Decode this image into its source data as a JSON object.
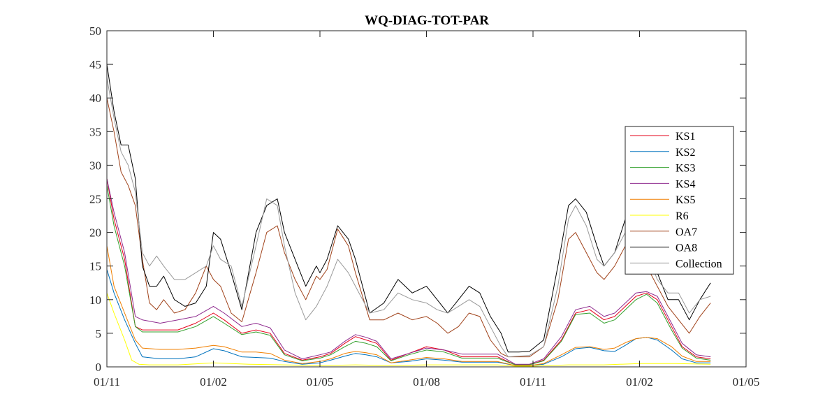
{
  "chart_data": {
    "type": "line",
    "title": "WQ-DIAG-TOT-PAR",
    "xlabel": "",
    "ylabel": "",
    "xlim": [
      0,
      18
    ],
    "ylim": [
      0,
      50
    ],
    "x_ticks": [
      {
        "value": 0,
        "label": "01/11"
      },
      {
        "value": 3,
        "label": "01/02"
      },
      {
        "value": 6,
        "label": "01/05"
      },
      {
        "value": 9,
        "label": "01/08"
      },
      {
        "value": 12,
        "label": "01/11"
      },
      {
        "value": 15,
        "label": "01/02"
      },
      {
        "value": 18,
        "label": "01/05"
      }
    ],
    "y_ticks": [
      0,
      5,
      10,
      15,
      20,
      25,
      30,
      35,
      40,
      45,
      50
    ],
    "grid": false,
    "legend_position": "right",
    "series": [
      {
        "name": "KS1",
        "color": "#e6001a",
        "x": [
          0,
          0.2,
          0.5,
          0.8,
          1.0,
          1.5,
          2.0,
          2.5,
          3.0,
          3.3,
          3.8,
          4.2,
          4.6,
          5.0,
          5.5,
          6.0,
          6.3,
          6.7,
          7.0,
          7.3,
          7.6,
          8.0,
          8.5,
          9.0,
          9.5,
          10.0,
          10.5,
          11.0,
          11.5,
          11.9,
          12.3,
          12.8,
          13.2,
          13.6,
          14.0,
          14.3,
          14.6,
          14.9,
          15.2,
          15.5,
          15.9,
          16.2,
          16.6,
          17.0
        ],
        "y": [
          28,
          22,
          16,
          6,
          5.5,
          5.5,
          5.5,
          6.5,
          8,
          7,
          5,
          5.5,
          5.0,
          2,
          1,
          1.5,
          2,
          3.5,
          4.5,
          4,
          3.5,
          1,
          2,
          3,
          2.5,
          1.5,
          1.5,
          1.5,
          0.3,
          0.3,
          1,
          4,
          8,
          8.5,
          7,
          7.5,
          9,
          10.5,
          11,
          10,
          6,
          3,
          1.5,
          1.2
        ]
      },
      {
        "name": "KS2",
        "color": "#0072bd",
        "x": [
          0,
          0.2,
          0.5,
          0.8,
          1.0,
          1.5,
          2.0,
          2.5,
          3.0,
          3.3,
          3.8,
          4.2,
          4.6,
          5.0,
          5.5,
          6.0,
          6.3,
          6.7,
          7.0,
          7.3,
          7.6,
          8.0,
          8.5,
          9.0,
          9.5,
          10.0,
          10.5,
          11.0,
          11.5,
          11.9,
          12.3,
          12.8,
          13.2,
          13.6,
          14.0,
          14.3,
          14.6,
          14.9,
          15.2,
          15.5,
          15.9,
          16.2,
          16.6,
          17.0
        ],
        "y": [
          14.5,
          11,
          7,
          3.5,
          1.5,
          1.2,
          1.2,
          1.5,
          2.7,
          2.4,
          1.5,
          1.4,
          1.3,
          0.8,
          0.4,
          0.6,
          1,
          1.6,
          2,
          1.8,
          1.5,
          0.6,
          0.8,
          1.2,
          1.0,
          0.7,
          0.7,
          0.7,
          0.2,
          0.2,
          0.4,
          1.5,
          2.7,
          2.9,
          2.4,
          2.3,
          3.2,
          4.2,
          4.4,
          4.0,
          2.5,
          1.2,
          0.6,
          0.6
        ]
      },
      {
        "name": "KS3",
        "color": "#33a02c",
        "x": [
          0,
          0.2,
          0.5,
          0.8,
          1.0,
          1.5,
          2.0,
          2.5,
          3.0,
          3.3,
          3.8,
          4.2,
          4.6,
          5.0,
          5.5,
          6.0,
          6.3,
          6.7,
          7.0,
          7.3,
          7.6,
          8.0,
          8.5,
          9.0,
          9.5,
          10.0,
          10.5,
          11.0,
          11.5,
          11.9,
          12.3,
          12.8,
          13.2,
          13.6,
          14.0,
          14.3,
          14.6,
          14.9,
          15.2,
          15.5,
          15.9,
          16.2,
          16.6,
          17.0
        ],
        "y": [
          27,
          21,
          15,
          6,
          5.2,
          5.2,
          5.2,
          6,
          7.5,
          6.5,
          4.8,
          5.2,
          4.7,
          1.8,
          0.9,
          1.3,
          1.8,
          3,
          3.8,
          3.5,
          3,
          0.9,
          1.8,
          2.5,
          2.2,
          1.3,
          1.3,
          1.3,
          0.3,
          0.3,
          0.9,
          3.8,
          7.8,
          8,
          6.5,
          7,
          8.5,
          10,
          10.8,
          9.5,
          5.5,
          2.8,
          1.3,
          1.0
        ]
      },
      {
        "name": "KS4",
        "color": "#8e2a8e",
        "x": [
          0,
          0.2,
          0.5,
          0.8,
          1.0,
          1.5,
          2.0,
          2.5,
          3.0,
          3.3,
          3.8,
          4.2,
          4.6,
          5.0,
          5.5,
          6.0,
          6.3,
          6.7,
          7.0,
          7.3,
          7.6,
          8.0,
          8.5,
          9.0,
          9.5,
          10.0,
          10.5,
          11.0,
          11.5,
          11.9,
          12.3,
          12.8,
          13.2,
          13.6,
          14.0,
          14.3,
          14.6,
          14.9,
          15.2,
          15.5,
          15.9,
          16.2,
          16.6,
          17.0
        ],
        "y": [
          28,
          23,
          17,
          7.5,
          7,
          6.5,
          7,
          7.5,
          9,
          8,
          6,
          6.5,
          5.8,
          2.5,
          1.2,
          1.8,
          2.2,
          3.8,
          4.8,
          4.4,
          3.8,
          1.2,
          2,
          2.8,
          2.5,
          1.9,
          1.9,
          1.9,
          0.4,
          0.4,
          1.2,
          4.5,
          8.5,
          9,
          7.5,
          8,
          9.5,
          11,
          11.2,
          10.5,
          6.5,
          3.5,
          1.8,
          1.5
        ]
      },
      {
        "name": "KS5",
        "color": "#f07f00",
        "x": [
          0,
          0.2,
          0.5,
          0.8,
          1.0,
          1.5,
          2.0,
          2.5,
          3.0,
          3.3,
          3.8,
          4.2,
          4.6,
          5.0,
          5.5,
          6.0,
          6.3,
          6.7,
          7.0,
          7.3,
          7.6,
          8.0,
          8.5,
          9.0,
          9.5,
          10.0,
          10.5,
          11.0,
          11.5,
          11.9,
          12.3,
          12.8,
          13.2,
          13.6,
          14.0,
          14.3,
          14.6,
          14.9,
          15.2,
          15.5,
          15.9,
          16.2,
          16.6,
          17.0
        ],
        "y": [
          18,
          12,
          8,
          4,
          2.8,
          2.6,
          2.6,
          2.8,
          3.2,
          3,
          2.2,
          2.2,
          2.0,
          1.0,
          0.5,
          0.8,
          1.2,
          2,
          2.3,
          2.1,
          1.8,
          0.6,
          1,
          1.4,
          1.2,
          0.8,
          0.8,
          0.8,
          0.2,
          0.2,
          0.5,
          1.8,
          2.9,
          3.0,
          2.6,
          2.8,
          3.6,
          4.2,
          4.4,
          4.2,
          3.0,
          1.6,
          0.8,
          0.8
        ]
      },
      {
        "name": "R6",
        "color": "#ffff00",
        "x": [
          0,
          0.2,
          0.5,
          0.7,
          0.9,
          1.2,
          2.0,
          3.0,
          4.0,
          5.0,
          6.0,
          7.0,
          8.0,
          9.0,
          10.0,
          11.0,
          11.5,
          12.0,
          13.0,
          14.0,
          15.0,
          16.0,
          17.0
        ],
        "y": [
          11,
          8,
          4,
          1,
          0.4,
          0.3,
          0.3,
          0.6,
          0.4,
          0.3,
          0.2,
          0.3,
          0.2,
          0.3,
          0.3,
          0.3,
          0.1,
          0.1,
          0.3,
          0.3,
          0.5,
          0.5,
          0.4
        ]
      },
      {
        "name": "OA7",
        "color": "#a0421a",
        "x": [
          0,
          0.2,
          0.4,
          0.6,
          0.8,
          1.0,
          1.2,
          1.4,
          1.6,
          1.9,
          2.2,
          2.5,
          2.8,
          3.0,
          3.2,
          3.5,
          3.8,
          4.2,
          4.5,
          4.8,
          5.0,
          5.3,
          5.6,
          5.9,
          6.0,
          6.2,
          6.5,
          6.8,
          7.0,
          7.4,
          7.8,
          8.2,
          8.6,
          9.0,
          9.3,
          9.6,
          9.9,
          10.2,
          10.5,
          10.8,
          11.1,
          11.3,
          11.6,
          11.9,
          12.3,
          12.7,
          13.0,
          13.2,
          13.5,
          13.8,
          14.0,
          14.3,
          14.6,
          14.9,
          15.2,
          15.5,
          15.8,
          16.1,
          16.4,
          16.7,
          17.0
        ],
        "y": [
          40,
          35,
          29,
          27,
          24,
          16,
          9.5,
          8.5,
          10,
          8,
          8.5,
          11,
          15,
          13,
          12,
          8,
          6.7,
          14,
          20,
          21,
          17,
          13,
          10,
          13.5,
          13,
          14.5,
          20.5,
          18,
          14,
          7,
          7,
          8,
          7,
          7.5,
          6.5,
          5,
          6,
          8,
          7.5,
          4,
          2,
          1.5,
          1.5,
          1.5,
          3,
          10,
          19,
          20,
          17,
          14,
          13,
          15,
          18,
          17.5,
          15,
          12,
          9,
          7,
          5,
          7.5,
          9.5
        ]
      },
      {
        "name": "OA8",
        "color": "#000000",
        "x": [
          0,
          0.2,
          0.4,
          0.6,
          0.8,
          1.0,
          1.2,
          1.4,
          1.6,
          1.9,
          2.2,
          2.5,
          2.8,
          3.0,
          3.2,
          3.5,
          3.8,
          4.2,
          4.5,
          4.8,
          5.0,
          5.3,
          5.6,
          5.9,
          6.0,
          6.2,
          6.5,
          6.8,
          7.0,
          7.4,
          7.8,
          8.2,
          8.6,
          9.0,
          9.3,
          9.6,
          9.9,
          10.2,
          10.5,
          10.8,
          11.1,
          11.3,
          11.6,
          11.9,
          12.3,
          12.7,
          13.0,
          13.2,
          13.5,
          13.8,
          14.0,
          14.3,
          14.6,
          14.9,
          15.2,
          15.5,
          15.8,
          16.1,
          16.4,
          16.7,
          17.0
        ],
        "y": [
          45,
          38,
          33,
          33,
          28,
          15,
          12,
          12,
          13.5,
          10,
          9,
          9.5,
          12,
          20,
          19,
          14,
          8.5,
          20,
          24,
          25,
          20,
          16,
          12,
          15,
          14,
          16,
          21,
          19,
          16,
          8,
          9.5,
          13,
          11,
          12,
          10,
          8,
          10,
          12,
          11,
          7.5,
          5,
          2.2,
          2.2,
          2.3,
          4,
          15,
          24,
          25,
          23,
          18,
          15,
          17,
          22,
          20,
          19,
          14,
          10,
          10,
          7,
          10,
          12.5
        ]
      },
      {
        "name": "Collection",
        "color": "#999999",
        "x": [
          0,
          0.2,
          0.4,
          0.6,
          0.8,
          1.0,
          1.2,
          1.4,
          1.6,
          1.9,
          2.2,
          2.5,
          2.8,
          3.0,
          3.2,
          3.5,
          3.8,
          4.2,
          4.5,
          4.8,
          5.0,
          5.3,
          5.6,
          5.9,
          6.0,
          6.2,
          6.5,
          6.8,
          7.0,
          7.4,
          7.8,
          8.2,
          8.6,
          9.0,
          9.3,
          9.6,
          9.9,
          10.2,
          10.5,
          10.8,
          11.1,
          11.3,
          11.6,
          11.9,
          12.3,
          12.7,
          13.0,
          13.2,
          13.5,
          13.8,
          14.0,
          14.3,
          14.6,
          14.9,
          15.2,
          15.5,
          15.8,
          16.1,
          16.4,
          16.7,
          17.0
        ],
        "y": [
          43,
          37,
          32,
          30,
          26,
          17,
          15,
          16.5,
          15,
          13,
          13,
          14,
          15,
          18,
          16,
          15,
          9,
          18,
          25,
          24,
          18,
          11,
          7,
          9,
          10,
          12,
          16,
          14,
          12,
          8,
          8.5,
          11,
          10,
          9.5,
          8.5,
          8,
          9,
          10,
          9,
          6,
          3,
          1.5,
          1.6,
          1.7,
          3,
          12,
          22,
          24,
          21,
          16,
          15,
          17,
          20,
          19,
          17,
          13,
          11,
          11,
          8,
          10,
          10.5
        ]
      }
    ]
  }
}
